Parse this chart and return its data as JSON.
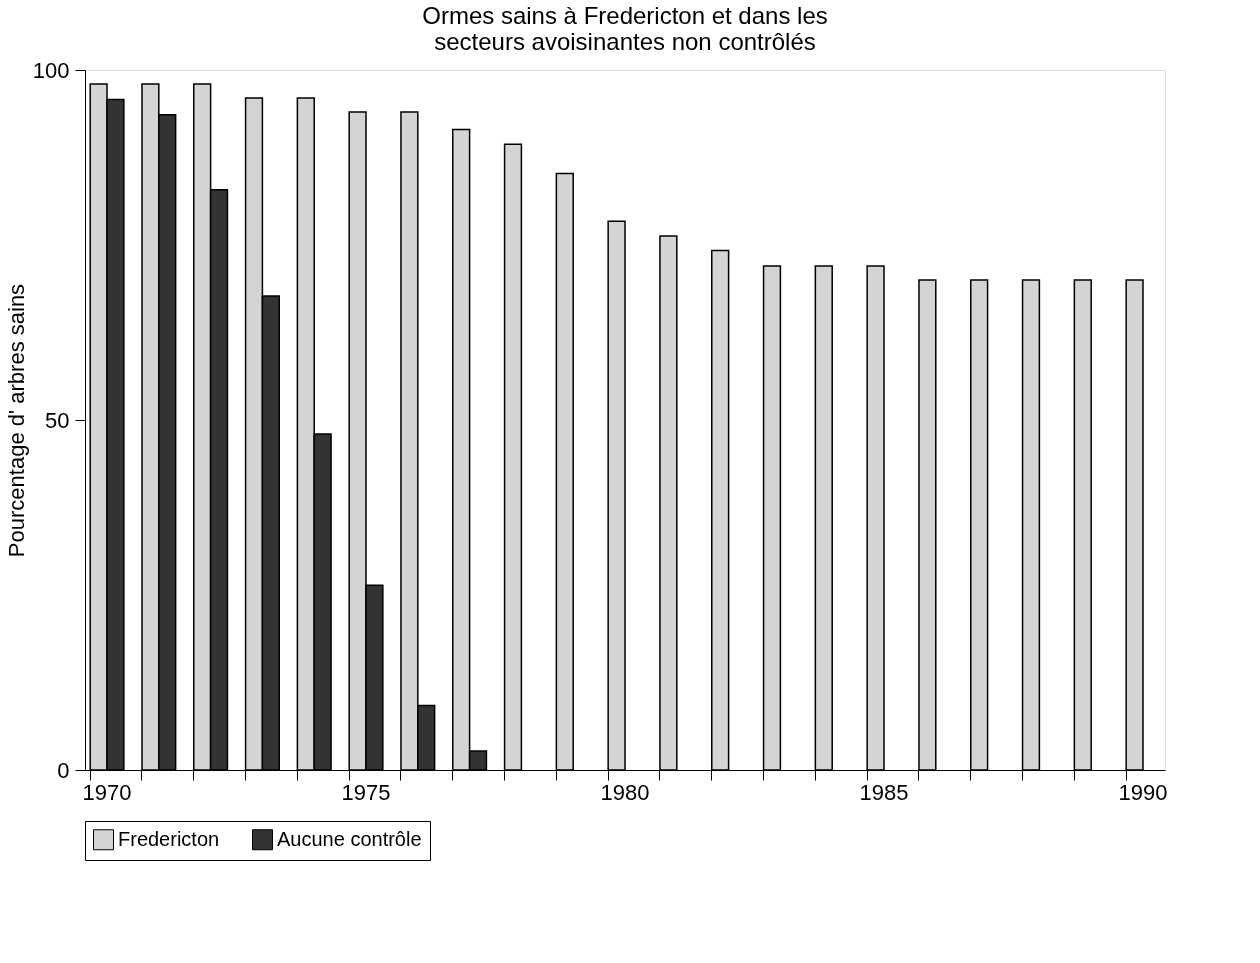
{
  "chart_data": {
    "type": "bar",
    "title": [
      "Ormes sains à Fredericton et dans les",
      "secteurs avoisinantes non contrôlés"
    ],
    "ylabel": "Pourcentage d' arbres sains",
    "categories": [
      "1970",
      null,
      null,
      null,
      null,
      "1975",
      null,
      null,
      null,
      null,
      "1980",
      null,
      null,
      null,
      null,
      "1985",
      null,
      null,
      null,
      null,
      "1990"
    ],
    "series": [
      {
        "name": "Fredericton",
        "color": "#d4d4d4",
        "values": [
          98,
          98,
          98,
          96,
          96,
          94,
          94,
          91.5,
          89.4,
          85.2,
          78.4,
          76.3,
          74.2,
          72,
          72,
          72,
          70,
          70,
          70,
          70,
          70
        ]
      },
      {
        "name": "Aucune contrôle",
        "color": "#333333",
        "values": [
          95.8,
          93.6,
          82.9,
          67.7,
          48,
          26.4,
          9.2,
          2.7,
          null,
          null,
          null,
          null,
          null,
          null,
          null,
          null,
          null,
          null,
          null,
          null,
          null
        ]
      }
    ],
    "ylim": [
      0,
      100
    ],
    "yticks": [
      0,
      50,
      100
    ],
    "grid": false,
    "legend": "bottom"
  }
}
